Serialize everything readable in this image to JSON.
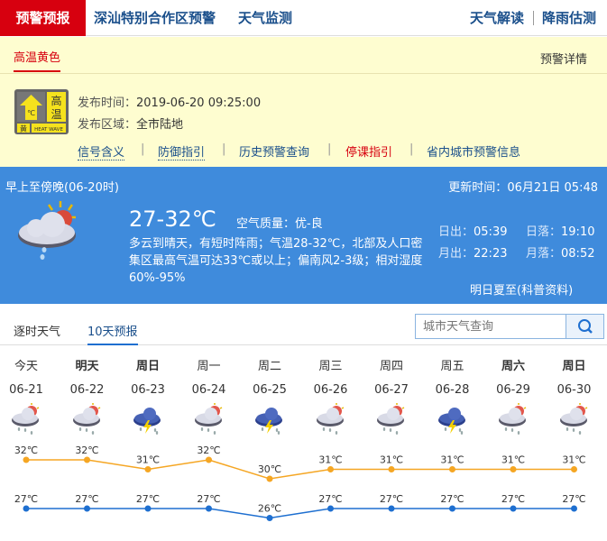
{
  "nav": {
    "active": "预警预报",
    "items": [
      "深汕特别合作区预警",
      "天气监测"
    ],
    "right": [
      "天气解读",
      "降雨估测"
    ]
  },
  "warning": {
    "tab": "高温黄色",
    "details_link": "预警详情",
    "icon": {
      "type": "heat-wave-yellow",
      "label_big": "高温",
      "label_color": "黄",
      "label_en": "HEAT WAVE",
      "symbol": "℃",
      "color": "#f5e21d"
    },
    "publish_time_label": "发布时间：",
    "publish_time": "2019-06-20 09:25:00",
    "area_label": "发布区域：",
    "area": "全市陆地",
    "links": [
      "信号含义",
      "防御指引",
      "历史预警查询",
      "停课指引",
      "省内城市预警信息"
    ],
    "highlight_color": "#d7000f"
  },
  "today": {
    "period": "早上至傍晚(06-20时)",
    "update_label": "更新时间：",
    "update_time": "06月21日 05:48",
    "temp": "27-32℃",
    "aqi_label": "空气质量：",
    "aqi": "优-良",
    "desc": "多云到晴天，有短时阵雨；气温28-32℃，北部及人口密集区最高气温可达33℃或以上；偏南风2-3级；相对湿度60%-95%",
    "sunrise_label": "日出：",
    "sunrise": "05:39",
    "sunset_label": "日落：",
    "sunset": "19:10",
    "moonrise_label": "月出：",
    "moonrise": "22:23",
    "moonset_label": "月落：",
    "moonset": "08:52",
    "note": "明日夏至(科普资料)",
    "bg_color": "#3f8bdc",
    "icon": "partly-cloudy-shower-icon"
  },
  "forecast_tabs": [
    "逐时天气",
    "10天预报"
  ],
  "active_tab": "10天预报",
  "search": {
    "placeholder": "城市天气查询"
  },
  "chart_data": {
    "type": "line",
    "categories": [
      "06-21",
      "06-22",
      "06-23",
      "06-24",
      "06-25",
      "06-26",
      "06-27",
      "06-28",
      "06-29",
      "06-30"
    ],
    "weekdays": [
      "今天",
      "明天",
      "周日",
      "周一",
      "周二",
      "周三",
      "周四",
      "周五",
      "周六",
      "周日"
    ],
    "bold_weekdays": [
      false,
      true,
      true,
      false,
      false,
      false,
      false,
      false,
      true,
      true
    ],
    "icons": [
      "shower",
      "shower",
      "thunder",
      "shower",
      "thunder",
      "shower",
      "shower",
      "thunder",
      "shower",
      "shower"
    ],
    "series": [
      {
        "values": [
          32,
          32,
          31,
          32,
          30,
          31,
          31,
          31,
          31,
          31
        ],
        "color": "#f5a623"
      },
      {
        "values": [
          27,
          27,
          27,
          27,
          26,
          27,
          27,
          27,
          27,
          27
        ],
        "color": "#1e6fd0"
      }
    ],
    "unit": "℃"
  }
}
